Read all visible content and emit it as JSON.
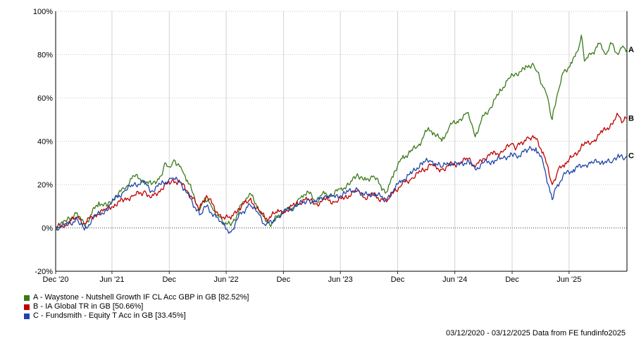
{
  "chart_data": {
    "type": "line",
    "title": "",
    "xlabel": "",
    "ylabel": "",
    "ylim": [
      -20,
      100
    ],
    "yticks": [
      "100%",
      "80%",
      "60%",
      "40%",
      "20%",
      "0%",
      "-20%"
    ],
    "xticks": [
      {
        "label": "Dec '20",
        "date": "2020-12-03"
      },
      {
        "label": "Jun '21",
        "date": "2021-06-01"
      },
      {
        "label": "Dec",
        "date": "2021-12-01"
      },
      {
        "label": "Jun '22",
        "date": "2022-06-01"
      },
      {
        "label": "Dec",
        "date": "2022-12-01"
      },
      {
        "label": "Jun '23",
        "date": "2023-06-01"
      },
      {
        "label": "Dec",
        "date": "2023-12-01"
      },
      {
        "label": "Jun '24",
        "date": "2024-06-01"
      },
      {
        "label": "Dec",
        "date": "2024-12-01"
      },
      {
        "label": "Jun '25",
        "date": "2025-06-01"
      }
    ],
    "grid": true,
    "legend_position": "bottom-left",
    "series": [
      {
        "name": "A - Waystone - Nutshell Growth IF CL Acc GBP in GB [82.52%]",
        "end_label": "A",
        "color": "#3a7a1a",
        "points": [
          [
            "2020-12-03",
            0
          ],
          [
            "2021-01-05",
            3
          ],
          [
            "2021-02-10",
            7
          ],
          [
            "2021-03-05",
            1
          ],
          [
            "2021-03-25",
            6
          ],
          [
            "2021-04-20",
            12
          ],
          [
            "2021-05-15",
            10
          ],
          [
            "2021-06-15",
            15
          ],
          [
            "2021-07-10",
            18
          ],
          [
            "2021-08-10",
            24
          ],
          [
            "2021-09-10",
            22
          ],
          [
            "2021-10-05",
            20
          ],
          [
            "2021-11-05",
            24
          ],
          [
            "2021-11-20",
            30
          ],
          [
            "2021-12-05",
            28
          ],
          [
            "2021-12-20",
            31
          ],
          [
            "2022-01-10",
            27
          ],
          [
            "2022-01-28",
            22
          ],
          [
            "2022-02-20",
            14
          ],
          [
            "2022-03-08",
            8
          ],
          [
            "2022-03-25",
            14
          ],
          [
            "2022-04-15",
            10
          ],
          [
            "2022-05-05",
            6
          ],
          [
            "2022-05-20",
            3
          ],
          [
            "2022-06-16",
            1
          ],
          [
            "2022-07-05",
            6
          ],
          [
            "2022-07-25",
            12
          ],
          [
            "2022-08-15",
            16
          ],
          [
            "2022-09-10",
            10
          ],
          [
            "2022-10-05",
            3
          ],
          [
            "2022-10-25",
            2
          ],
          [
            "2022-11-15",
            6
          ],
          [
            "2022-12-10",
            8
          ],
          [
            "2023-01-05",
            10
          ],
          [
            "2023-01-25",
            14
          ],
          [
            "2023-02-15",
            17
          ],
          [
            "2023-03-15",
            12
          ],
          [
            "2023-04-05",
            16
          ],
          [
            "2023-05-05",
            15
          ],
          [
            "2023-06-01",
            18
          ],
          [
            "2023-07-01",
            20
          ],
          [
            "2023-07-25",
            25
          ],
          [
            "2023-08-15",
            22
          ],
          [
            "2023-09-15",
            24
          ],
          [
            "2023-10-15",
            18
          ],
          [
            "2023-10-30",
            17
          ],
          [
            "2023-11-20",
            26
          ],
          [
            "2023-12-15",
            32
          ],
          [
            "2024-01-10",
            35
          ],
          [
            "2024-02-05",
            38
          ],
          [
            "2024-03-05",
            45
          ],
          [
            "2024-03-25",
            44
          ],
          [
            "2024-04-20",
            40
          ],
          [
            "2024-05-15",
            47
          ],
          [
            "2024-06-15",
            50
          ],
          [
            "2024-07-10",
            53
          ],
          [
            "2024-07-25",
            48
          ],
          [
            "2024-08-05",
            42
          ],
          [
            "2024-08-25",
            50
          ],
          [
            "2024-09-20",
            55
          ],
          [
            "2024-10-20",
            62
          ],
          [
            "2024-11-15",
            68
          ],
          [
            "2024-12-10",
            71
          ],
          [
            "2025-01-10",
            73
          ],
          [
            "2025-02-05",
            76
          ],
          [
            "2025-02-20",
            72
          ],
          [
            "2025-03-10",
            65
          ],
          [
            "2025-03-25",
            60
          ],
          [
            "2025-04-08",
            50
          ],
          [
            "2025-04-25",
            62
          ],
          [
            "2025-05-15",
            72
          ],
          [
            "2025-06-10",
            76
          ],
          [
            "2025-06-30",
            82
          ],
          [
            "2025-07-10",
            89
          ],
          [
            "2025-07-20",
            77
          ],
          [
            "2025-08-10",
            80
          ],
          [
            "2025-09-05",
            85
          ],
          [
            "2025-09-25",
            80
          ],
          [
            "2025-10-15",
            85
          ],
          [
            "2025-11-05",
            80
          ],
          [
            "2025-11-20",
            84
          ],
          [
            "2025-12-03",
            82.52
          ]
        ]
      },
      {
        "name": "B - IA Global TR in GB [50.66%]",
        "end_label": "B",
        "color": "#c00000",
        "points": [
          [
            "2020-12-03",
            0
          ],
          [
            "2021-01-05",
            2
          ],
          [
            "2021-02-10",
            5
          ],
          [
            "2021-03-05",
            2
          ],
          [
            "2021-04-05",
            6
          ],
          [
            "2021-05-10",
            8
          ],
          [
            "2021-06-10",
            11
          ],
          [
            "2021-07-10",
            13
          ],
          [
            "2021-08-10",
            15
          ],
          [
            "2021-09-15",
            17
          ],
          [
            "2021-10-05",
            14
          ],
          [
            "2021-11-05",
            18
          ],
          [
            "2021-12-10",
            22
          ],
          [
            "2022-01-05",
            21
          ],
          [
            "2022-01-28",
            17
          ],
          [
            "2022-03-08",
            9
          ],
          [
            "2022-03-30",
            15
          ],
          [
            "2022-05-10",
            6
          ],
          [
            "2022-06-16",
            4
          ],
          [
            "2022-07-10",
            9
          ],
          [
            "2022-08-15",
            13
          ],
          [
            "2022-09-15",
            8
          ],
          [
            "2022-10-05",
            4
          ],
          [
            "2022-11-10",
            7
          ],
          [
            "2022-12-10",
            8
          ],
          [
            "2023-01-10",
            11
          ],
          [
            "2023-02-15",
            13
          ],
          [
            "2023-03-15",
            11
          ],
          [
            "2023-04-15",
            13
          ],
          [
            "2023-05-15",
            12
          ],
          [
            "2023-06-15",
            14
          ],
          [
            "2023-07-25",
            17
          ],
          [
            "2023-08-15",
            14
          ],
          [
            "2023-09-15",
            15
          ],
          [
            "2023-10-27",
            12
          ],
          [
            "2023-11-20",
            17
          ],
          [
            "2023-12-15",
            20
          ],
          [
            "2024-01-15",
            23
          ],
          [
            "2024-02-15",
            26
          ],
          [
            "2024-03-15",
            29
          ],
          [
            "2024-04-20",
            27
          ],
          [
            "2024-05-15",
            29
          ],
          [
            "2024-06-15",
            30
          ],
          [
            "2024-07-15",
            32
          ],
          [
            "2024-08-05",
            28
          ],
          [
            "2024-08-30",
            32
          ],
          [
            "2024-09-30",
            34
          ],
          [
            "2024-10-30",
            35
          ],
          [
            "2024-11-30",
            39
          ],
          [
            "2024-12-15",
            37
          ],
          [
            "2025-01-20",
            42
          ],
          [
            "2025-02-15",
            41
          ],
          [
            "2025-03-10",
            35
          ],
          [
            "2025-04-08",
            20
          ],
          [
            "2025-04-25",
            26
          ],
          [
            "2025-05-20",
            30
          ],
          [
            "2025-06-15",
            33
          ],
          [
            "2025-07-15",
            38
          ],
          [
            "2025-08-15",
            40
          ],
          [
            "2025-09-15",
            44
          ],
          [
            "2025-10-15",
            48
          ],
          [
            "2025-11-05",
            52
          ],
          [
            "2025-11-20",
            49
          ],
          [
            "2025-12-03",
            50.66
          ]
        ]
      },
      {
        "name": "C - Fundsmith - Equity T Acc in GB [33.45%]",
        "end_label": "C",
        "color": "#1f45a8",
        "points": [
          [
            "2020-12-03",
            0
          ],
          [
            "2021-01-05",
            1
          ],
          [
            "2021-02-10",
            4
          ],
          [
            "2021-03-05",
            -1
          ],
          [
            "2021-04-05",
            5
          ],
          [
            "2021-05-10",
            8
          ],
          [
            "2021-06-10",
            13
          ],
          [
            "2021-07-10",
            17
          ],
          [
            "2021-08-10",
            20
          ],
          [
            "2021-09-10",
            21
          ],
          [
            "2021-10-05",
            17
          ],
          [
            "2021-11-05",
            20
          ],
          [
            "2021-12-10",
            23
          ],
          [
            "2022-01-05",
            21
          ],
          [
            "2022-01-28",
            16
          ],
          [
            "2022-03-08",
            6
          ],
          [
            "2022-03-30",
            10
          ],
          [
            "2022-05-10",
            3
          ],
          [
            "2022-06-16",
            -2
          ],
          [
            "2022-07-10",
            5
          ],
          [
            "2022-08-15",
            11
          ],
          [
            "2022-09-15",
            6
          ],
          [
            "2022-10-05",
            1
          ],
          [
            "2022-11-10",
            5
          ],
          [
            "2022-12-10",
            8
          ],
          [
            "2023-01-10",
            10
          ],
          [
            "2023-02-15",
            13
          ],
          [
            "2023-03-15",
            12
          ],
          [
            "2023-04-15",
            15
          ],
          [
            "2023-05-15",
            14
          ],
          [
            "2023-06-15",
            16
          ],
          [
            "2023-07-25",
            18
          ],
          [
            "2023-08-15",
            15
          ],
          [
            "2023-09-15",
            16
          ],
          [
            "2023-10-27",
            13
          ],
          [
            "2023-11-20",
            18
          ],
          [
            "2023-12-15",
            22
          ],
          [
            "2024-01-15",
            25
          ],
          [
            "2024-02-15",
            30
          ],
          [
            "2024-03-15",
            31
          ],
          [
            "2024-04-20",
            28
          ],
          [
            "2024-05-15",
            30
          ],
          [
            "2024-06-15",
            29
          ],
          [
            "2024-07-15",
            31
          ],
          [
            "2024-08-05",
            27
          ],
          [
            "2024-08-30",
            30
          ],
          [
            "2024-09-30",
            31
          ],
          [
            "2024-10-30",
            32
          ],
          [
            "2024-11-30",
            34
          ],
          [
            "2024-12-15",
            33
          ],
          [
            "2025-01-20",
            36
          ],
          [
            "2025-02-15",
            37
          ],
          [
            "2025-03-10",
            30
          ],
          [
            "2025-04-08",
            13
          ],
          [
            "2025-04-25",
            20
          ],
          [
            "2025-05-20",
            25
          ],
          [
            "2025-06-15",
            27
          ],
          [
            "2025-07-15",
            29
          ],
          [
            "2025-08-15",
            30
          ],
          [
            "2025-09-15",
            31
          ],
          [
            "2025-10-15",
            30
          ],
          [
            "2025-11-05",
            34
          ],
          [
            "2025-11-20",
            32
          ],
          [
            "2025-12-03",
            33.45
          ]
        ]
      }
    ]
  },
  "footer": "03/12/2020 - 03/12/2025 Data from FE fundinfo2025"
}
